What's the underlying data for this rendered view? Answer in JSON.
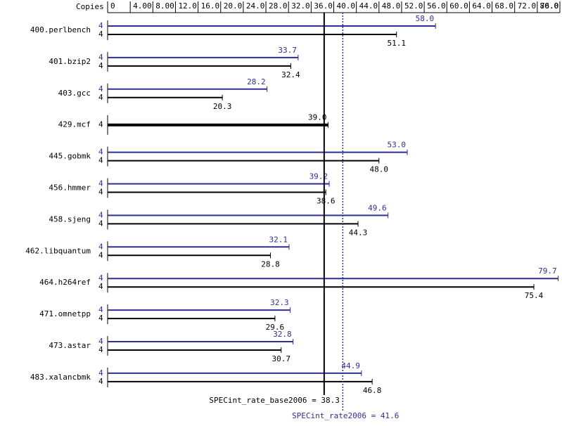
{
  "chart_data": {
    "type": "bar",
    "orientation": "horizontal",
    "x_label": "Copies",
    "categories": [
      "400.perlbench",
      "401.bzip2",
      "403.gcc",
      "429.mcf",
      "445.gobmk",
      "456.hmmer",
      "458.sjeng",
      "462.libquantum",
      "464.h264ref",
      "471.omnetpp",
      "473.astar",
      "483.xalancbmk"
    ],
    "series": [
      {
        "name": "SPECint_rate2006",
        "color": "#2e2e96",
        "copies": [
          4,
          4,
          4,
          null,
          4,
          4,
          4,
          4,
          4,
          4,
          4,
          4
        ],
        "values": [
          58.0,
          33.7,
          28.2,
          null,
          53.0,
          39.2,
          49.6,
          32.1,
          79.7,
          32.3,
          32.8,
          44.9
        ],
        "value_labels": [
          "58.0",
          "33.7",
          "28.2",
          null,
          "53.0",
          "39.2",
          "49.6",
          "32.1",
          "79.7",
          "32.3",
          "32.8",
          "44.9"
        ]
      },
      {
        "name": "SPECint_rate_base2006",
        "color": "#000000",
        "copies": [
          4,
          4,
          4,
          4,
          4,
          4,
          4,
          4,
          4,
          4,
          4,
          4
        ],
        "values": [
          51.1,
          32.4,
          20.3,
          39.0,
          48.0,
          38.6,
          44.3,
          28.8,
          75.4,
          29.6,
          30.7,
          46.8
        ],
        "value_labels": [
          "51.1",
          "32.4",
          "20.3",
          "39.0",
          "48.0",
          "38.6",
          "44.3",
          "28.8",
          "75.4",
          "29.6",
          "30.7",
          "46.8"
        ]
      }
    ],
    "xlim": [
      0,
      80
    ],
    "xticks": [
      0,
      {
        "value": 4,
        "label": "4.00"
      },
      {
        "value": 8,
        "label": "8.00"
      },
      {
        "value": 12,
        "label": "12.0"
      },
      {
        "value": 16,
        "label": "16.0"
      },
      {
        "value": 20,
        "label": "20.0"
      },
      {
        "value": 24,
        "label": "24.0"
      },
      {
        "value": 28,
        "label": "28.0"
      },
      {
        "value": 32,
        "label": "32.0"
      },
      {
        "value": 36,
        "label": "36.0"
      },
      {
        "value": 40,
        "label": "40.0"
      },
      {
        "value": 44,
        "label": "44.0"
      },
      {
        "value": 48,
        "label": "48.0"
      },
      {
        "value": 52,
        "label": "52.0"
      },
      {
        "value": 56,
        "label": "56.0"
      },
      {
        "value": 60,
        "label": "60.0"
      },
      {
        "value": 64,
        "label": "64.0"
      },
      {
        "value": 68,
        "label": "68.0"
      },
      {
        "value": 72,
        "label": "72.0"
      },
      {
        "value": 76,
        "label": "76.0"
      },
      {
        "value": {
          "value": 80,
          "label": "80.0"
        }
      }
    ],
    "reference_lines": [
      {
        "text": "SPECint_rate_base2006 = 38.3",
        "value": 38.3,
        "color": "#000000",
        "style": "solid"
      },
      {
        "text": "SPECint_rate2006 = 41.6",
        "value": 41.6,
        "color": "#2e2e96",
        "style": "dotted"
      }
    ]
  }
}
